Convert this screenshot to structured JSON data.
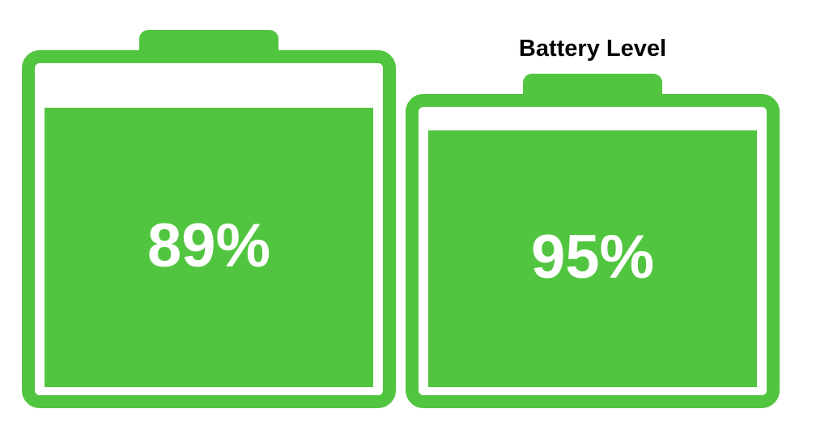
{
  "title": "Battery Level",
  "color": "#52c540",
  "batteries": [
    {
      "label": "89%",
      "level": 89
    },
    {
      "label": "95%",
      "level": 95
    }
  ]
}
